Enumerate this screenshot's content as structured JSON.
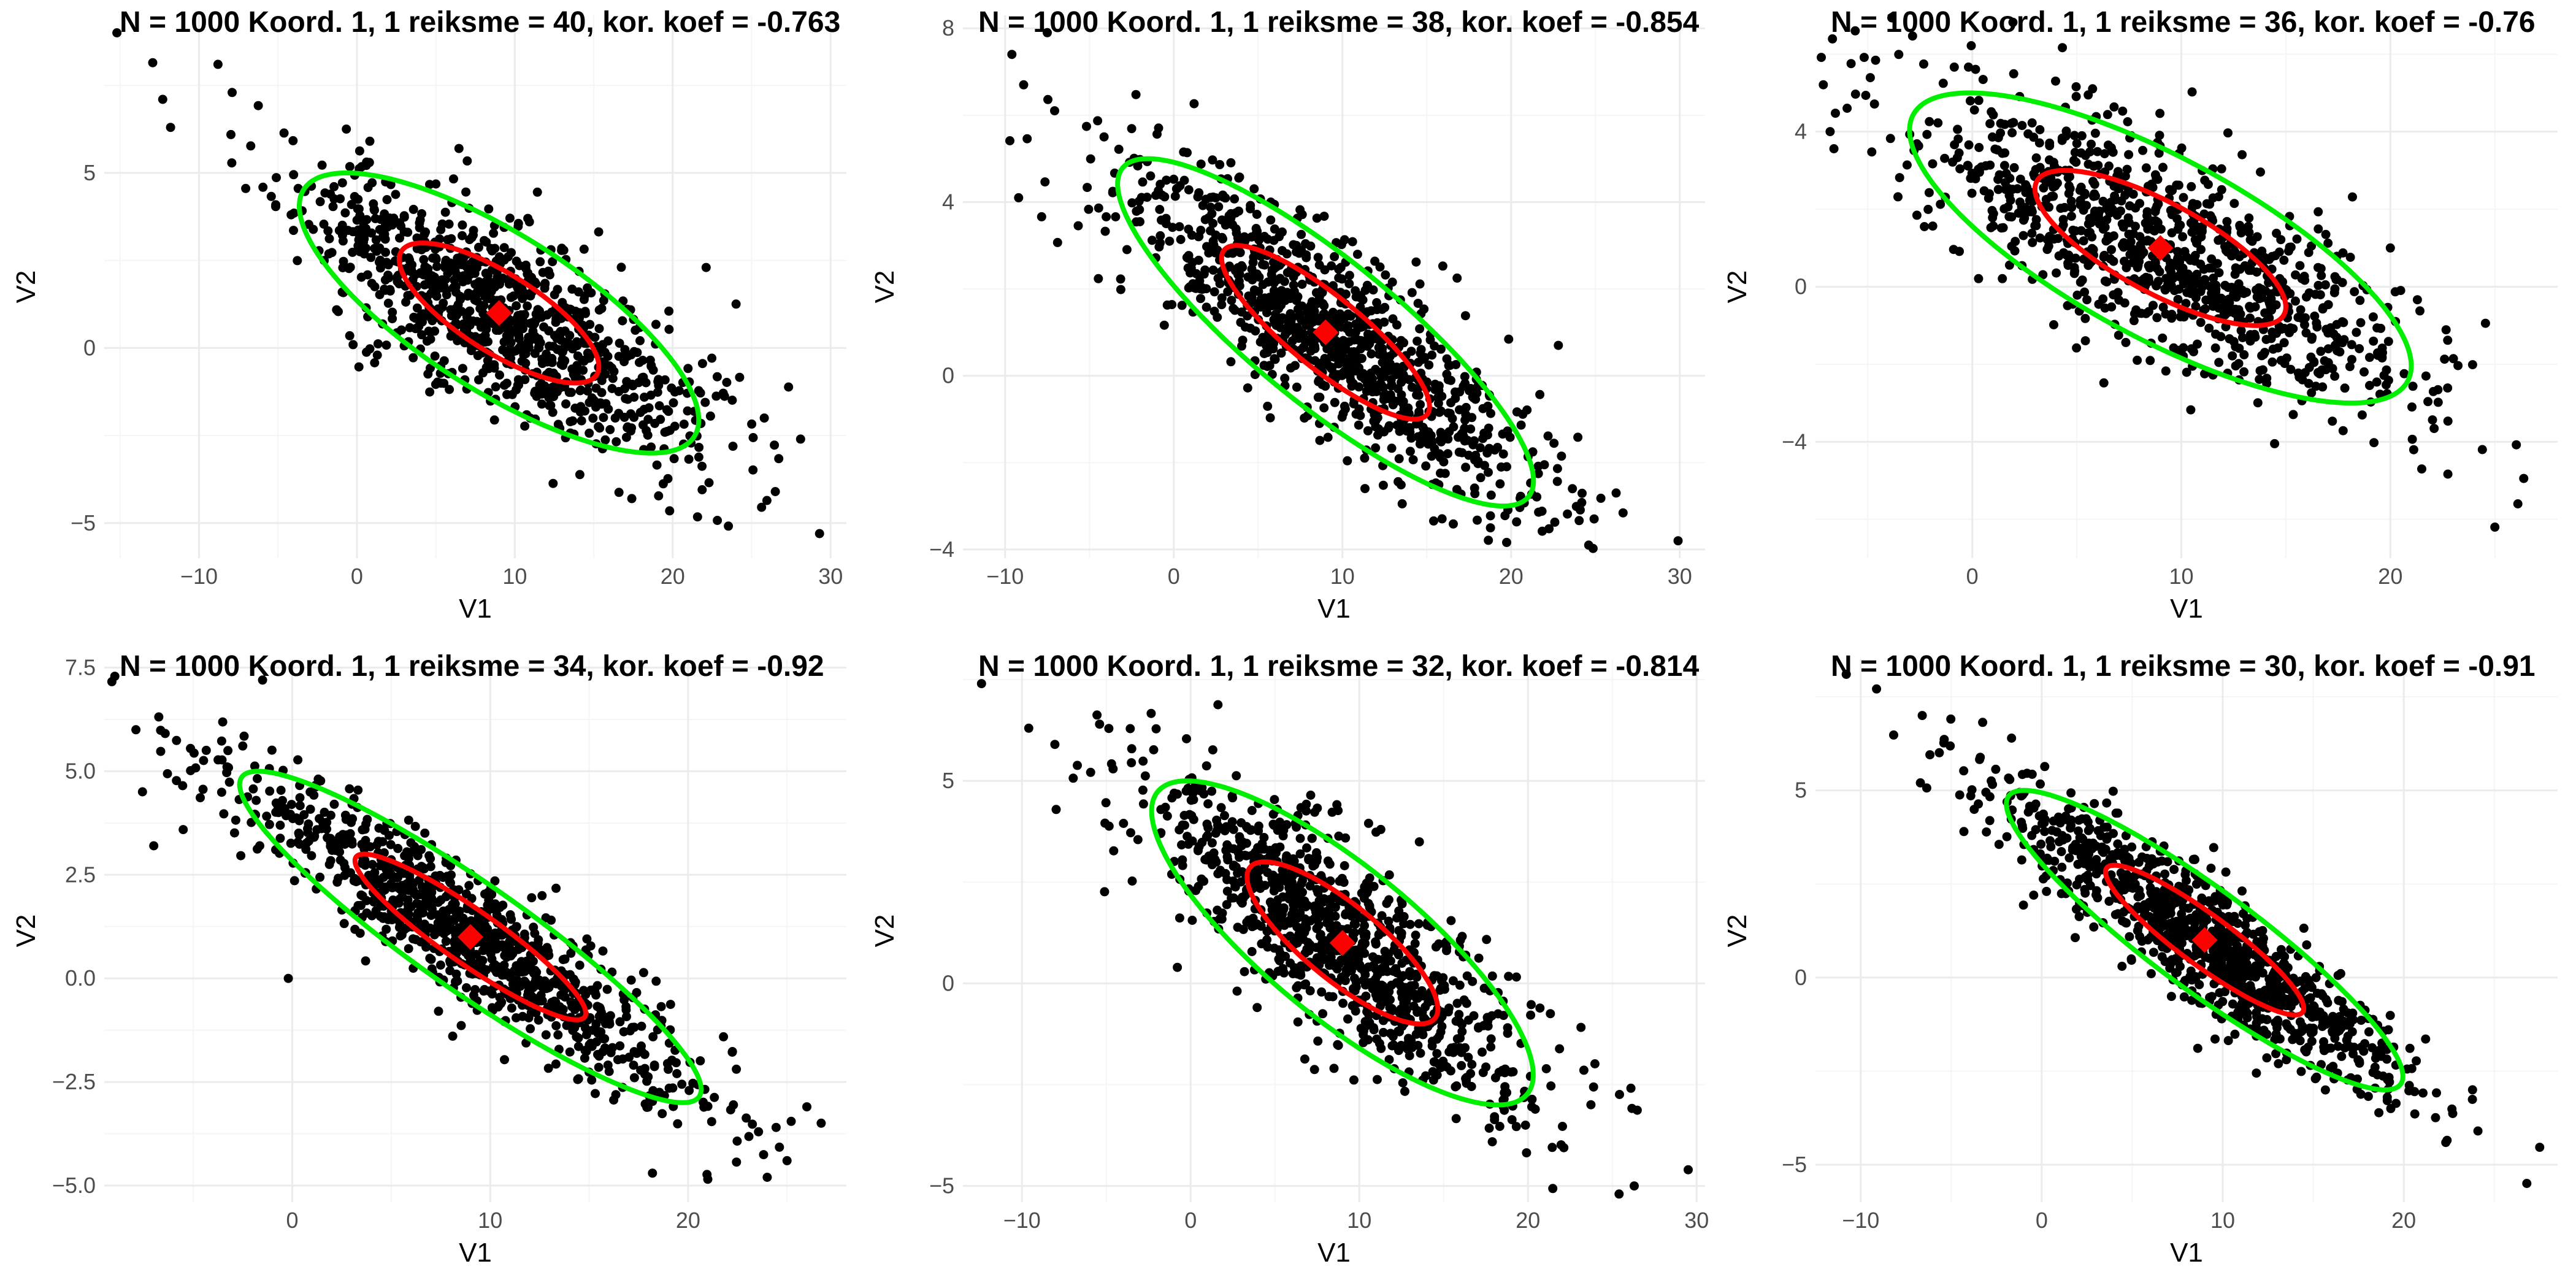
{
  "figure": {
    "background": "#ffffff",
    "grid": true
  },
  "colors": {
    "points": "#000000",
    "mean": "#ff0000",
    "inner_ellipse": "#ff0000",
    "outer_ellipse": "#00ee00",
    "grid_major": "#ebebeb",
    "grid_minor": "#f5f5f5",
    "tick_text": "#4d4d4d"
  },
  "chart_data": [
    {
      "type": "scatter",
      "title": "N = 1000 Koord. 1, 1 reiksme = 40, kor. koef = -0.763",
      "xlabel": "V1",
      "ylabel": "V2",
      "n": 1000,
      "var_x": 40,
      "corr": -0.763,
      "var_y": 4.0,
      "mean": [
        9,
        1
      ],
      "xlim": [
        -16,
        31
      ],
      "ylim": [
        -6,
        9.5
      ],
      "xticks": [
        -10,
        0,
        10,
        20,
        30
      ],
      "yticks": [
        -5,
        0,
        5
      ],
      "seed": 11,
      "extreme_points": [
        [
          -15.2,
          9.0
        ],
        [
          -12.3,
          7.1
        ],
        [
          -8.8,
          8.1
        ],
        [
          29.3,
          -5.3
        ],
        [
          26.5,
          -4.1
        ],
        [
          -11.8,
          6.3
        ],
        [
          25.8,
          -2.0
        ],
        [
          28.1,
          -2.6
        ]
      ]
    },
    {
      "type": "scatter",
      "title": "N = 1000 Koord. 1, 1 reiksme = 38, kor. koef = -0.854",
      "xlabel": "V1",
      "ylabel": "V2",
      "n": 1000,
      "var_x": 38,
      "corr": -0.854,
      "var_y": 4.0,
      "mean": [
        9,
        1
      ],
      "xlim": [
        -12.5,
        31.5
      ],
      "ylim": [
        -4.2,
        8.3
      ],
      "xticks": [
        -10,
        0,
        10,
        20,
        30
      ],
      "yticks": [
        -4,
        0,
        4,
        8
      ],
      "seed": 23,
      "extreme_points": [
        [
          -9.6,
          7.4
        ],
        [
          -8.9,
          6.7
        ],
        [
          -7.5,
          7.9
        ],
        [
          29.9,
          -3.8
        ],
        [
          24.6,
          -3.9
        ],
        [
          22.8,
          0.7
        ],
        [
          -9.2,
          4.1
        ]
      ]
    },
    {
      "type": "scatter",
      "title": "N = 1000 Koord. 1, 1 reiksme = 36, kor. koef = -0.76",
      "xlabel": "V1",
      "ylabel": "V2",
      "n": 1000,
      "var_x": 36,
      "corr": -0.76,
      "var_y": 4.0,
      "mean": [
        9,
        1
      ],
      "xlim": [
        -7.5,
        28
      ],
      "ylim": [
        -7,
        7
      ],
      "xticks": [
        0,
        10,
        20
      ],
      "yticks": [
        -4,
        0,
        4
      ],
      "seed": 37,
      "extreme_points": [
        [
          -5.6,
          6.6
        ],
        [
          -6.8,
          4.0
        ],
        [
          25.0,
          -6.2
        ],
        [
          26.1,
          -5.6
        ],
        [
          24.4,
          -4.2
        ],
        [
          21.5,
          -4.7
        ],
        [
          20.0,
          1.0
        ]
      ]
    },
    {
      "type": "scatter",
      "title": "N = 1000 Koord. 1, 1 reiksme = 34, kor. koef = -0.92",
      "xlabel": "V1",
      "ylabel": "V2",
      "n": 1000,
      "var_x": 34,
      "corr": -0.92,
      "var_y": 4.0,
      "mean": [
        9,
        1
      ],
      "xlim": [
        -9.5,
        28
      ],
      "ylim": [
        -5.4,
        7.7
      ],
      "xticks": [
        0,
        10,
        20
      ],
      "yticks": [
        -5.0,
        -2.5,
        0.0,
        2.5,
        5.0,
        7.5
      ],
      "seed": 53,
      "extreme_points": [
        [
          -7.9,
          6.0
        ],
        [
          -7.0,
          3.2
        ],
        [
          24.0,
          -4.8
        ],
        [
          25.0,
          -4.4
        ],
        [
          26.0,
          -3.1
        ],
        [
          -0.2,
          0.0
        ],
        [
          18.2,
          -4.7
        ],
        [
          -1.5,
          7.2
        ]
      ]
    },
    {
      "type": "scatter",
      "title": "N = 1000 Koord. 1, 1 reiksme = 32, kor. koef = -0.814",
      "xlabel": "V1",
      "ylabel": "V2",
      "n": 1000,
      "var_x": 32,
      "corr": -0.814,
      "var_y": 4.0,
      "mean": [
        9,
        1
      ],
      "xlim": [
        -13.5,
        30.5
      ],
      "ylim": [
        -5.4,
        8
      ],
      "xticks": [
        -10,
        0,
        10,
        20,
        30
      ],
      "yticks": [
        -5,
        0,
        5
      ],
      "seed": 71,
      "extreme_points": [
        [
          -12.4,
          7.4
        ],
        [
          -9.6,
          6.3
        ],
        [
          29.5,
          -4.6
        ],
        [
          26.3,
          -5.0
        ],
        [
          25.4,
          -5.2
        ],
        [
          -5.4,
          6.4
        ]
      ]
    },
    {
      "type": "scatter",
      "title": "N = 1000 Koord. 1, 1 reiksme = 30, kor. koef = -0.91",
      "xlabel": "V1",
      "ylabel": "V2",
      "n": 1000,
      "var_x": 30,
      "corr": -0.91,
      "var_y": 4.0,
      "mean": [
        9,
        1
      ],
      "xlim": [
        -12.5,
        28.5
      ],
      "ylim": [
        -6,
        8.5
      ],
      "xticks": [
        -10,
        0,
        10,
        20
      ],
      "yticks": [
        -5,
        0,
        5
      ],
      "seed": 89,
      "extreme_points": [
        [
          -10.8,
          8.1
        ],
        [
          -6.6,
          7.0
        ],
        [
          26.8,
          -5.5
        ],
        [
          24.1,
          -4.1
        ],
        [
          23.8,
          -3.0
        ],
        [
          -4.3,
          3.9
        ]
      ]
    }
  ]
}
